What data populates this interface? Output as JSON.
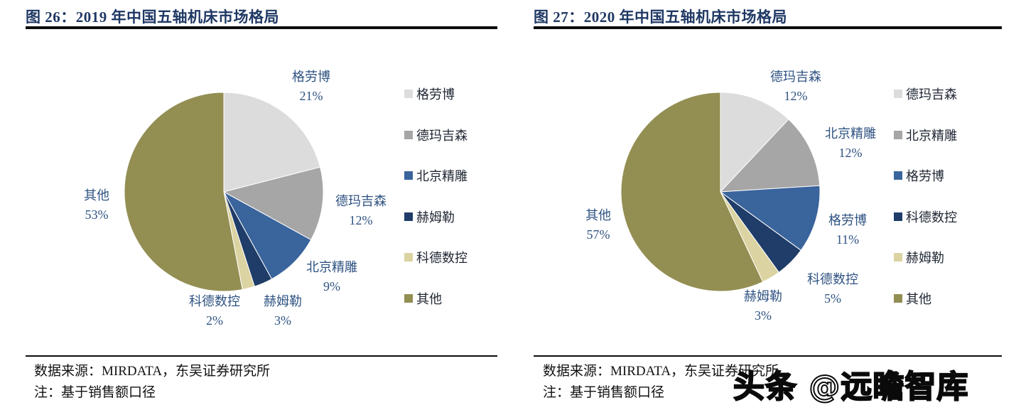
{
  "watermark": {
    "text": "头条 @远瞻智库"
  },
  "chart_data": [
    {
      "type": "pie",
      "figure_no": "图 26",
      "title": "2019 年中国五轴机床市场格局",
      "title_full": "图 26：2019 年中国五轴机床市场格局",
      "categories": [
        "格劳博",
        "德玛吉森",
        "北京精雕",
        "赫姆勒",
        "科德数控",
        "其他"
      ],
      "values": [
        21,
        12,
        9,
        3,
        2,
        53
      ],
      "unit": "%",
      "colors": [
        "#dcdcdc",
        "#a6a6a6",
        "#3a649c",
        "#1f3d68",
        "#dbd3a1",
        "#938e52"
      ],
      "start_angle_deg": 0,
      "direction": "clockwise",
      "legend_position": "right",
      "legend": [
        "格劳博",
        "德玛吉森",
        "北京精雕",
        "赫姆勒",
        "科德数控",
        "其他"
      ],
      "source": "数据来源：MIRDATA，东吴证券研究所",
      "note": "注：基于销售额口径"
    },
    {
      "type": "pie",
      "figure_no": "图 27",
      "title": "2020 年中国五轴机床市场格局",
      "title_full": "图 27：2020 年中国五轴机床市场格局",
      "categories": [
        "德玛吉森",
        "北京精雕",
        "格劳博",
        "科德数控",
        "赫姆勒",
        "其他"
      ],
      "values": [
        12,
        12,
        11,
        5,
        3,
        57
      ],
      "unit": "%",
      "colors": [
        "#dcdcdc",
        "#a6a6a6",
        "#3a649c",
        "#1f3d68",
        "#dbd3a1",
        "#938e52"
      ],
      "start_angle_deg": 0,
      "direction": "clockwise",
      "legend_position": "right",
      "legend": [
        "德玛吉森",
        "北京精雕",
        "格劳博",
        "科德数控",
        "赫姆勒",
        "其他"
      ],
      "source": "数据来源：MIRDATA，东吴证券研究所",
      "note": "注：基于销售额口径"
    }
  ]
}
